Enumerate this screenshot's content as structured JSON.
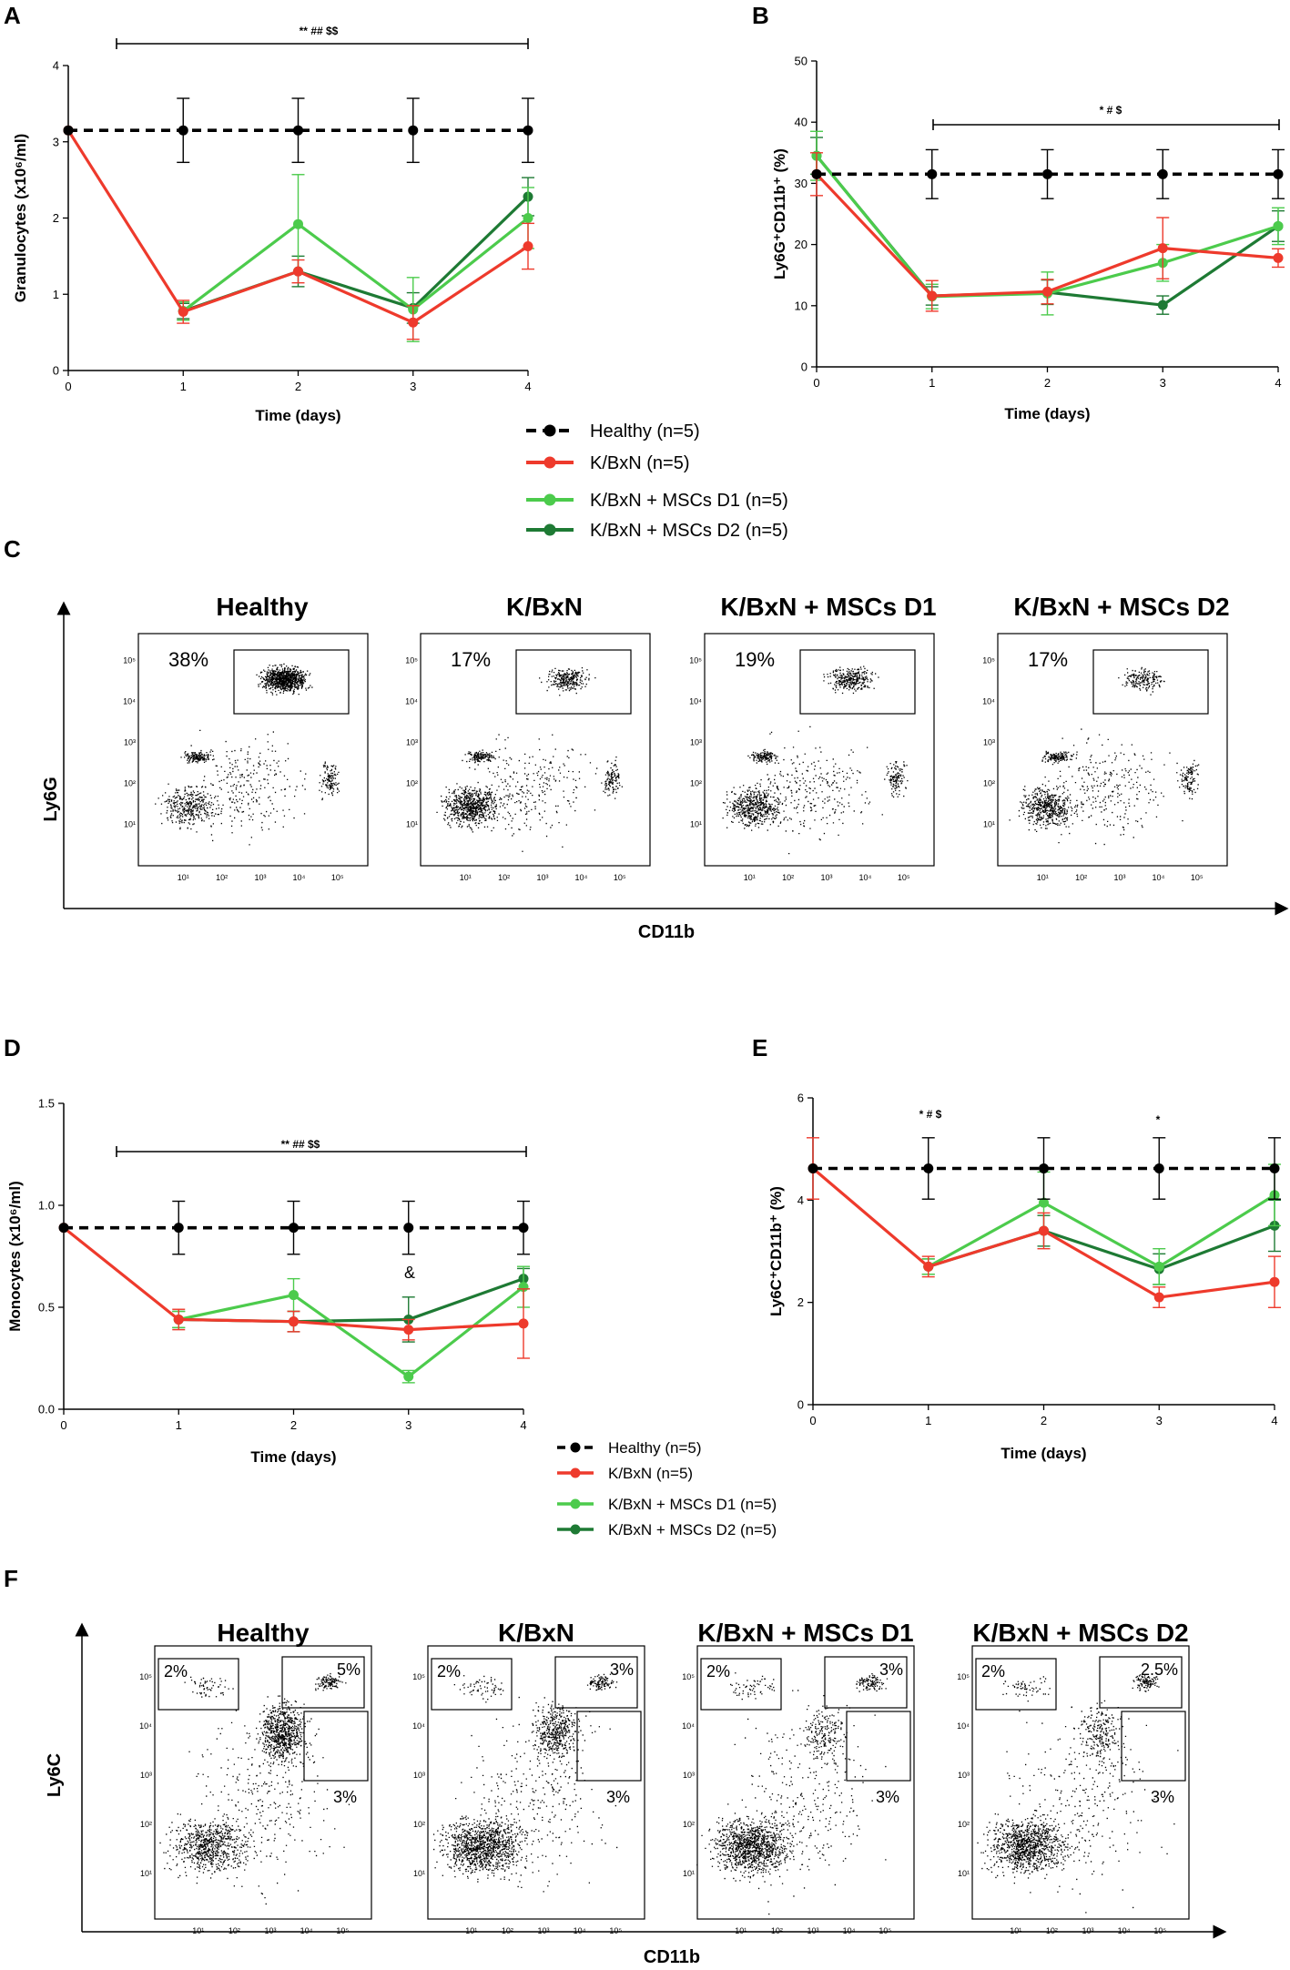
{
  "colors": {
    "healthy": "#000000",
    "kbxn": "#ee3a2c",
    "d1": "#4ccb4c",
    "d2": "#1e7a34"
  },
  "panels": {
    "A": {
      "letter": "A",
      "sig_text": "** ## $$"
    },
    "B": {
      "letter": "B",
      "sig_text": "* # $"
    },
    "C": {
      "letter": "C"
    },
    "D": {
      "letter": "D",
      "sig_text": "** ## $$",
      "amp": "&"
    },
    "E": {
      "letter": "E",
      "sig1": "* # $",
      "sig2": "*"
    },
    "F": {
      "letter": "F"
    }
  },
  "legend": [
    "Healthy (n=5)",
    "K/BxN (n=5)",
    "K/BxN + MSCs D1 (n=5)",
    "K/BxN + MSCs D2 (n=5)"
  ],
  "chart_data": [
    {
      "id": "A",
      "type": "line",
      "ylabel": "Granulocytes (x10⁶/ml)",
      "xlabel": "Time (days)",
      "x": [
        0,
        1,
        2,
        3,
        4
      ],
      "xlim": [
        0,
        4
      ],
      "ylim": [
        0,
        4
      ],
      "yticks": [
        0,
        1,
        2,
        3,
        4
      ],
      "series": [
        {
          "name": "Healthy (n=5)",
          "key": "healthy",
          "x": [
            0,
            1,
            2,
            3,
            4
          ],
          "values": [
            3.15,
            3.15,
            3.15,
            3.15,
            3.15
          ],
          "err": [
            0,
            0.42,
            0.42,
            0.42,
            0.42
          ]
        },
        {
          "name": "K/BxN (n=5)",
          "key": "kbxn",
          "x": [
            0,
            1,
            2,
            3,
            4
          ],
          "values": [
            3.15,
            0.77,
            1.3,
            0.63,
            1.63
          ],
          "err": [
            0,
            0.15,
            0.15,
            0.22,
            0.3
          ]
        },
        {
          "name": "K/BxN + MSCs D1 (n=5)",
          "key": "d1",
          "x": [
            1,
            2,
            3,
            4
          ],
          "values": [
            0.78,
            1.92,
            0.8,
            2.0
          ],
          "err": [
            0.12,
            0.65,
            0.42,
            0.4
          ]
        },
        {
          "name": "K/BxN + MSCs D2 (n=5)",
          "key": "d2",
          "x": [
            1,
            2,
            3,
            4
          ],
          "values": [
            0.78,
            1.3,
            0.82,
            2.28
          ],
          "err": [
            0.1,
            0.2,
            0.2,
            0.25
          ]
        }
      ]
    },
    {
      "id": "B",
      "type": "line",
      "ylabel": "Ly6G⁺CD11b⁺ (%)",
      "xlabel": "Time (days)",
      "x": [
        0,
        1,
        2,
        3,
        4
      ],
      "xlim": [
        0,
        4
      ],
      "ylim": [
        0,
        50
      ],
      "yticks": [
        0,
        10,
        20,
        30,
        40,
        50
      ],
      "series": [
        {
          "name": "Healthy (n=5)",
          "key": "healthy",
          "x": [
            0,
            1,
            2,
            3,
            4
          ],
          "values": [
            31.5,
            31.5,
            31.5,
            31.5,
            31.5
          ],
          "err": [
            0,
            4,
            4,
            4,
            4
          ]
        },
        {
          "name": "K/BxN (n=5)",
          "key": "kbxn",
          "x": [
            0,
            1,
            2,
            3,
            4
          ],
          "values": [
            31.5,
            11.6,
            12.3,
            19.4,
            17.8
          ],
          "err": [
            3.5,
            2.5,
            2,
            5,
            1.5
          ]
        },
        {
          "name": "K/BxN + MSCs D1 (n=5)",
          "key": "d1",
          "x": [
            0,
            1,
            2,
            3,
            4
          ],
          "values": [
            34.5,
            11.5,
            12,
            17,
            23
          ],
          "err": [
            4,
            2,
            3.5,
            3,
            3
          ]
        },
        {
          "name": "K/BxN + MSCs D2 (n=5)",
          "key": "d2",
          "x": [
            0,
            1,
            2,
            3,
            4
          ],
          "values": [
            34.5,
            11.6,
            12.2,
            10.1,
            23
          ],
          "err": [
            3,
            1.5,
            2,
            1.5,
            2.5
          ]
        }
      ]
    },
    {
      "id": "D",
      "type": "line",
      "ylabel": "Monocytes (x10⁶/ml)",
      "xlabel": "Time (days)",
      "x": [
        0,
        1,
        2,
        3,
        4
      ],
      "xlim": [
        0,
        4
      ],
      "ylim": [
        0,
        1.5
      ],
      "yticks": [
        0.0,
        0.5,
        1.0,
        1.5
      ],
      "series": [
        {
          "name": "Healthy (n=5)",
          "key": "healthy",
          "x": [
            0,
            1,
            2,
            3,
            4
          ],
          "values": [
            0.89,
            0.89,
            0.89,
            0.89,
            0.89
          ],
          "err": [
            0,
            0.13,
            0.13,
            0.13,
            0.13
          ]
        },
        {
          "name": "K/BxN (n=5)",
          "key": "kbxn",
          "x": [
            0,
            1,
            2,
            3,
            4
          ],
          "values": [
            0.89,
            0.44,
            0.43,
            0.39,
            0.42
          ],
          "err": [
            0,
            0.05,
            0.05,
            0.05,
            0.17
          ]
        },
        {
          "name": "K/BxN + MSCs D1 (n=5)",
          "key": "d1",
          "x": [
            1,
            2,
            3,
            4
          ],
          "values": [
            0.44,
            0.56,
            0.16,
            0.6
          ],
          "err": [
            0.04,
            0.08,
            0.03,
            0.1
          ]
        },
        {
          "name": "K/BxN + MSCs D2 (n=5)",
          "key": "d2",
          "x": [
            1,
            2,
            3,
            4
          ],
          "values": [
            0.44,
            0.43,
            0.44,
            0.64
          ],
          "err": [
            0.04,
            0.05,
            0.11,
            0.05
          ]
        }
      ]
    },
    {
      "id": "E",
      "type": "line",
      "ylabel": "Ly6C⁺CD11b⁺ (%)",
      "xlabel": "Time (days)",
      "x": [
        0,
        1,
        2,
        3,
        4
      ],
      "xlim": [
        0,
        4
      ],
      "ylim": [
        0,
        6
      ],
      "yticks": [
        0,
        2,
        4,
        6
      ],
      "series": [
        {
          "name": "Healthy (n=5)",
          "key": "healthy",
          "x": [
            0,
            1,
            2,
            3,
            4
          ],
          "values": [
            4.62,
            4.62,
            4.62,
            4.62,
            4.62
          ],
          "err": [
            0,
            0.6,
            0.6,
            0.6,
            0.6
          ]
        },
        {
          "name": "K/BxN (n=5)",
          "key": "kbxn",
          "x": [
            0,
            1,
            2,
            3,
            4
          ],
          "values": [
            4.62,
            2.7,
            3.4,
            2.1,
            2.4
          ],
          "err": [
            0.6,
            0.2,
            0.35,
            0.2,
            0.5
          ]
        },
        {
          "name": "K/BxN + MSCs D1 (n=5)",
          "key": "d1",
          "x": [
            1,
            2,
            3,
            4
          ],
          "values": [
            2.7,
            3.95,
            2.7,
            4.1
          ],
          "err": [
            0.15,
            0.6,
            0.35,
            0.6
          ]
        },
        {
          "name": "K/BxN + MSCs D2 (n=5)",
          "key": "d2",
          "x": [
            1,
            2,
            3,
            4
          ],
          "values": [
            2.7,
            3.4,
            2.65,
            3.5
          ],
          "err": [
            0.15,
            0.3,
            0.3,
            0.5
          ]
        }
      ]
    }
  ],
  "flowC": {
    "yaxis": "Ly6G",
    "xaxis": "CD11b",
    "ticks": [
      "10¹",
      "10²",
      "10³",
      "10⁴",
      "10⁵"
    ],
    "plots": [
      {
        "title": "Healthy",
        "gate": "38%"
      },
      {
        "title": "K/BxN",
        "gate": "17%"
      },
      {
        "title": "K/BxN + MSCs D1",
        "gate": "19%"
      },
      {
        "title": "K/BxN + MSCs D2",
        "gate": "17%"
      }
    ]
  },
  "flowF": {
    "yaxis": "Ly6C",
    "xaxis": "CD11b",
    "ticks": [
      "10¹",
      "10²",
      "10³",
      "10⁴",
      "10⁵"
    ],
    "plots": [
      {
        "title": "Healthy",
        "g1": "2%",
        "g2": "5%",
        "g3": "3%"
      },
      {
        "title": "K/BxN",
        "g1": "2%",
        "g2": "3%",
        "g3": "3%"
      },
      {
        "title": "K/BxN + MSCs D1",
        "g1": "2%",
        "g2": "3%",
        "g3": "3%"
      },
      {
        "title": "K/BxN + MSCs D2",
        "g1": "2%",
        "g2": "2.5%",
        "g3": "3%"
      }
    ]
  }
}
